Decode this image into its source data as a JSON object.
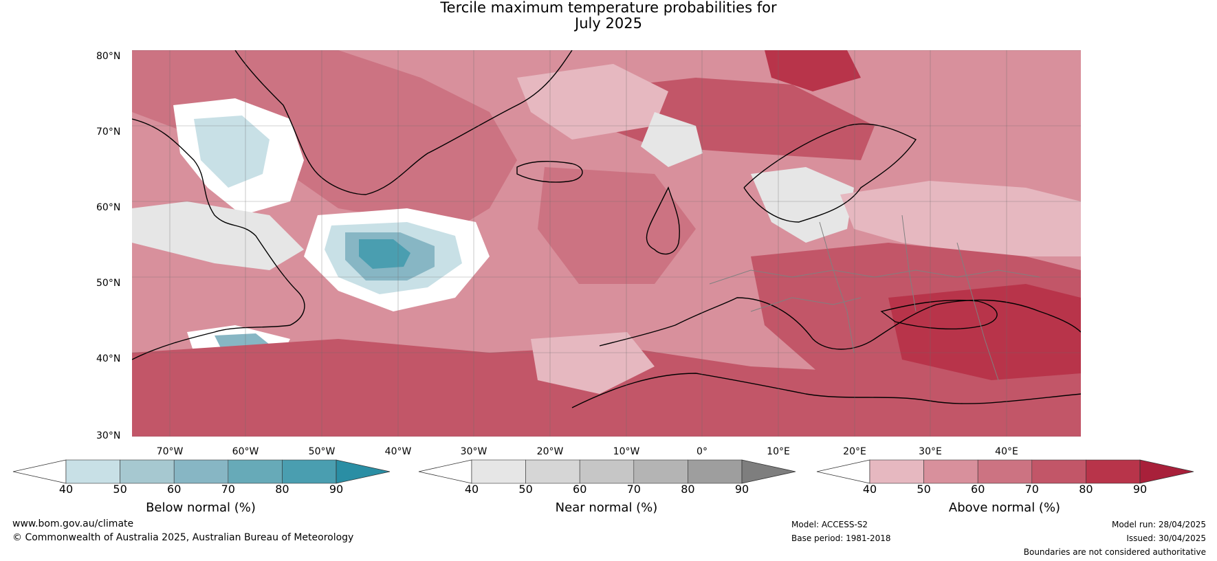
{
  "title_line1": "Tercile maximum temperature probabilities for",
  "title_line2": "July 2025",
  "latitudes": [
    "80°N",
    "70°N",
    "60°N",
    "50°N",
    "40°N",
    "30°N"
  ],
  "longitudes": [
    "70°W",
    "60°W",
    "50°W",
    "40°W",
    "30°W",
    "20°W",
    "10°W",
    "0°",
    "10°E",
    "20°E",
    "30°E",
    "40°E"
  ],
  "colorbars": [
    {
      "label": "Below normal (%)",
      "ticks": [
        "40",
        "50",
        "60",
        "70",
        "80",
        "90"
      ],
      "colors": [
        "#ffffff",
        "#c8e0e6",
        "#a6c8d0",
        "#87b6c4",
        "#67aab8",
        "#4a9eb0",
        "#2a8ea4"
      ]
    },
    {
      "label": "Near normal (%)",
      "ticks": [
        "40",
        "50",
        "60",
        "70",
        "80",
        "90"
      ],
      "colors": [
        "#ffffff",
        "#e6e6e6",
        "#d6d6d6",
        "#c6c6c6",
        "#b4b4b4",
        "#9e9e9e",
        "#7e7e7e"
      ]
    },
    {
      "label": "Above normal (%)",
      "ticks": [
        "40",
        "50",
        "60",
        "70",
        "80",
        "90"
      ],
      "colors": [
        "#ffffff",
        "#e6b8c0",
        "#d8909c",
        "#cc7382",
        "#c25668",
        "#b8344a",
        "#a8203a"
      ]
    }
  ],
  "footer": {
    "website": "www.bom.gov.au/climate",
    "copyright": "© Commonwealth of Australia 2025, Australian Bureau of Meteorology",
    "model": "Model: ACCESS-S2",
    "base_period": "Base period: 1981-2018",
    "model_run": "Model run: 28/04/2025",
    "issued": "Issued: 30/04/2025",
    "disclaimer": "Boundaries are not considered authoritative"
  }
}
